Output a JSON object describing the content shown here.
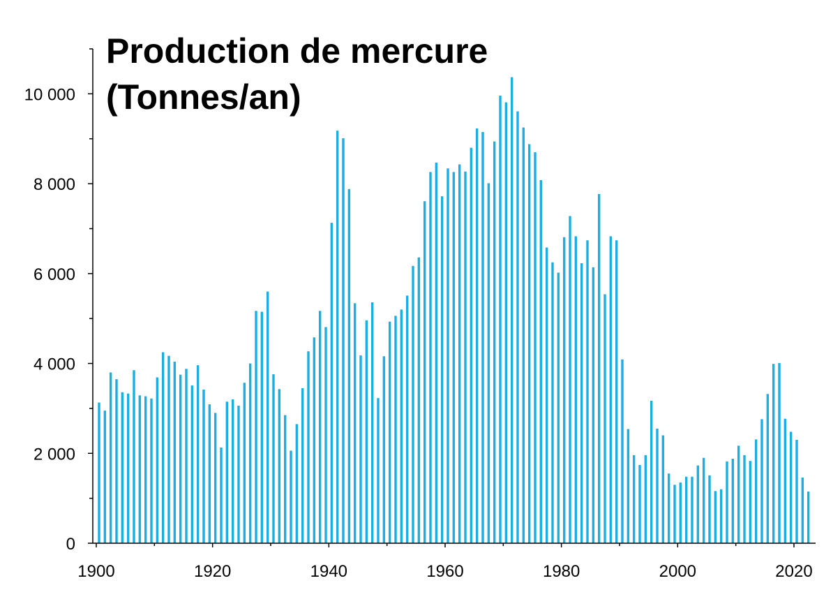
{
  "chart_data": {
    "type": "bar",
    "title_lines": [
      "Production de mercure",
      "(Tonnes/an)"
    ],
    "xlabel": "",
    "ylabel": "",
    "x_range": [
      1900,
      2023
    ],
    "ylim": [
      0,
      11000
    ],
    "y_ticks": [
      0,
      2000,
      4000,
      6000,
      8000,
      10000
    ],
    "y_tick_labels": [
      "0",
      "2 000",
      "4 000",
      "6 000",
      "8 000",
      "10 000"
    ],
    "x_ticks": [
      1900,
      1920,
      1940,
      1960,
      1980,
      2000,
      2020
    ],
    "x_tick_labels": [
      "1900",
      "1920",
      "1940",
      "1960",
      "1980",
      "2000",
      "2020"
    ],
    "grid": false,
    "legend": "none",
    "bar_color": "#1aaee3",
    "x": [
      1900,
      1901,
      1902,
      1903,
      1904,
      1905,
      1906,
      1907,
      1908,
      1909,
      1910,
      1911,
      1912,
      1913,
      1914,
      1915,
      1916,
      1917,
      1918,
      1919,
      1920,
      1921,
      1922,
      1923,
      1924,
      1925,
      1926,
      1927,
      1928,
      1929,
      1930,
      1931,
      1932,
      1933,
      1934,
      1935,
      1936,
      1937,
      1938,
      1939,
      1940,
      1941,
      1942,
      1943,
      1944,
      1945,
      1946,
      1947,
      1948,
      1949,
      1950,
      1951,
      1952,
      1953,
      1954,
      1955,
      1956,
      1957,
      1958,
      1959,
      1960,
      1961,
      1962,
      1963,
      1964,
      1965,
      1966,
      1967,
      1968,
      1969,
      1970,
      1971,
      1972,
      1973,
      1974,
      1975,
      1976,
      1977,
      1978,
      1979,
      1980,
      1981,
      1982,
      1983,
      1984,
      1985,
      1986,
      1987,
      1988,
      1989,
      1990,
      1991,
      1992,
      1993,
      1994,
      1995,
      1996,
      1997,
      1998,
      1999,
      2000,
      2001,
      2002,
      2003,
      2004,
      2005,
      2006,
      2007,
      2008,
      2009,
      2010,
      2011,
      2012,
      2013,
      2014,
      2015,
      2016,
      2017,
      2018,
      2019,
      2020,
      2021,
      2022
    ],
    "values": [
      3130,
      2950,
      3800,
      3650,
      3360,
      3330,
      3850,
      3290,
      3270,
      3220,
      3690,
      4250,
      4170,
      4040,
      3750,
      3880,
      3510,
      3960,
      3420,
      3090,
      2900,
      2130,
      3150,
      3200,
      3060,
      3570,
      4000,
      5170,
      5150,
      5600,
      3760,
      3430,
      2850,
      2060,
      2650,
      3450,
      4270,
      4580,
      5170,
      4810,
      7130,
      9180,
      9010,
      7880,
      5340,
      4180,
      4960,
      5360,
      3230,
      4160,
      4930,
      5060,
      5200,
      5510,
      6170,
      6360,
      7610,
      8260,
      8470,
      7720,
      8340,
      8260,
      8430,
      8270,
      8800,
      9230,
      9150,
      8010,
      8940,
      9960,
      9810,
      10370,
      9610,
      9250,
      8880,
      8700,
      8080,
      6580,
      6250,
      6020,
      6810,
      7280,
      6830,
      6230,
      6740,
      6140,
      7770,
      5540,
      6830,
      6740,
      4090,
      2540,
      1960,
      1740,
      1960,
      3170,
      2550,
      2400,
      1550,
      1300,
      1350,
      1480,
      1480,
      1730,
      1900,
      1510,
      1160,
      1200,
      1820,
      1880,
      2170,
      1960,
      1830,
      2310,
      2760,
      3320,
      3990,
      4010,
      2770,
      2480,
      2300,
      1460,
      1150
    ]
  }
}
